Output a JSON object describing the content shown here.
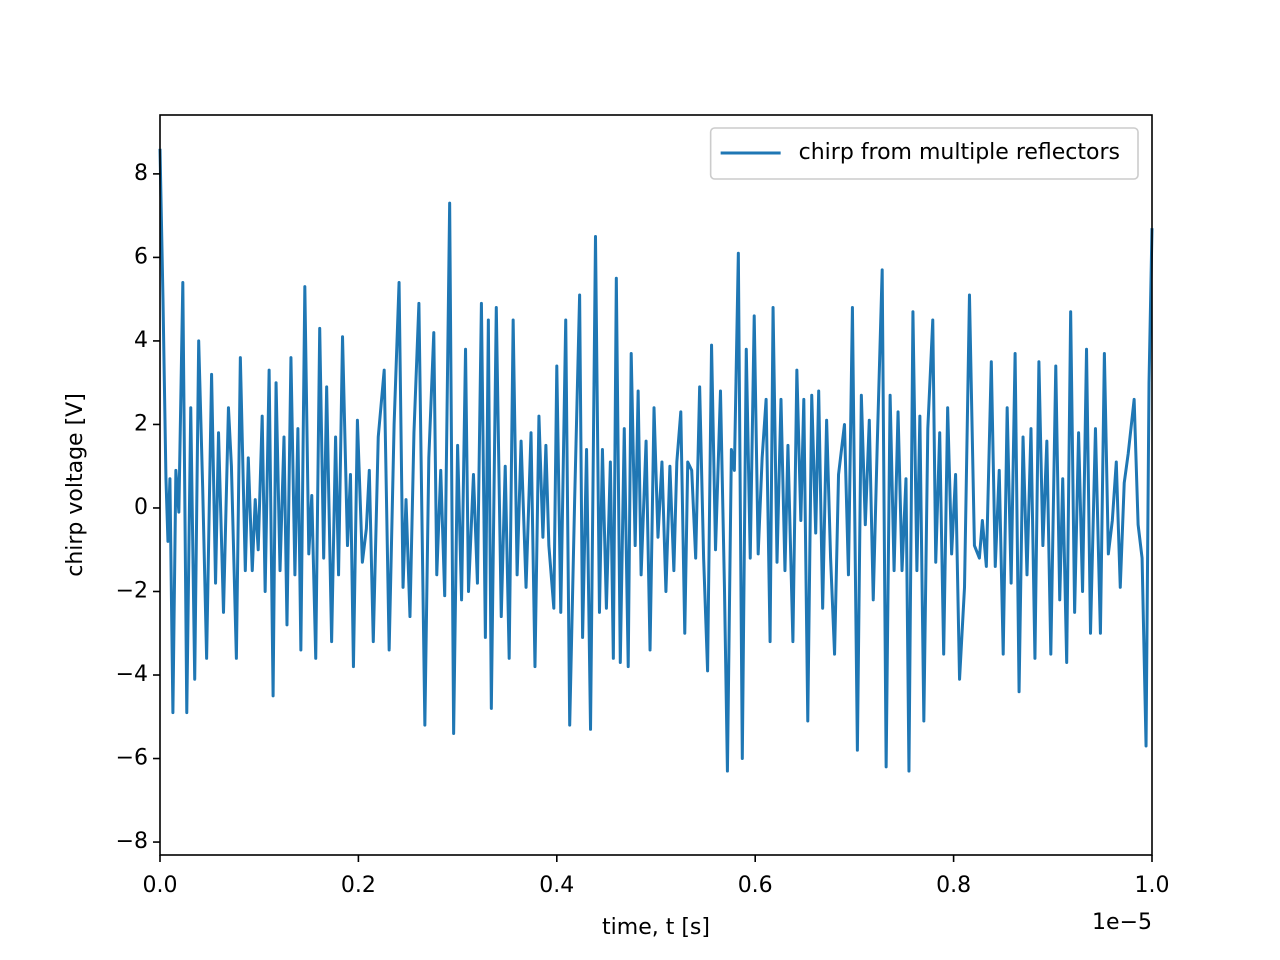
{
  "chart_data": {
    "type": "line",
    "x_label": "time, t [s]",
    "y_label": "chirp voltage [V]",
    "x_offset_label": "1e−5",
    "legend": "upper right",
    "xlim": [
      0,
      1
    ],
    "ylim": [
      -8.31,
      9.41
    ],
    "xticks": [
      {
        "value": 0,
        "label": "0.0"
      },
      0.2,
      0.4,
      0.6,
      0.8,
      {
        "value": 1,
        "label": "1.0"
      }
    ],
    "yticks": [
      {
        "value": -8,
        "label": "−8"
      },
      {
        "value": -6,
        "label": "−6"
      },
      {
        "value": -4,
        "label": "−4"
      },
      {
        "value": -2,
        "label": "−2"
      },
      0,
      2,
      4,
      6,
      8
    ],
    "x": [
      0,
      0.003,
      0.006,
      0.008,
      0.01,
      0.013,
      0.016,
      0.019,
      0.023,
      0.027,
      0.031,
      0.035,
      0.039,
      0.043,
      0.047,
      0.052,
      0.056,
      0.059,
      0.064,
      0.069,
      0.072,
      0.077,
      0.081,
      0.086,
      0.089,
      0.093,
      0.096,
      0.099,
      0.103,
      0.106,
      0.11,
      0.114,
      0.117,
      0.121,
      0.125,
      0.128,
      0.132,
      0.136,
      0.139,
      0.142,
      0.146,
      0.15,
      0.153,
      0.157,
      0.161,
      0.165,
      0.168,
      0.173,
      0.177,
      0.18,
      0.184,
      0.189,
      0.192,
      0.195,
      0.199,
      0.204,
      0.208,
      0.211,
      0.215,
      0.22,
      0.226,
      0.231,
      0.236,
      0.241,
      0.245,
      0.248,
      0.252,
      0.256,
      0.261,
      0.267,
      0.271,
      0.276,
      0.279,
      0.283,
      0.287,
      0.292,
      0.296,
      0.3,
      0.304,
      0.308,
      0.311,
      0.316,
      0.32,
      0.324,
      0.328,
      0.331,
      0.334,
      0.339,
      0.344,
      0.348,
      0.352,
      0.356,
      0.36,
      0.364,
      0.369,
      0.374,
      0.378,
      0.382,
      0.386,
      0.389,
      0.392,
      0.397,
      0.4,
      0.404,
      0.409,
      0.413,
      0.418,
      0.423,
      0.426,
      0.43,
      0.434,
      0.439,
      0.443,
      0.446,
      0.45,
      0.454,
      0.457,
      0.46,
      0.464,
      0.468,
      0.472,
      0.475,
      0.479,
      0.482,
      0.485,
      0.49,
      0.494,
      0.498,
      0.502,
      0.506,
      0.51,
      0.514,
      0.518,
      0.521,
      0.525,
      0.529,
      0.532,
      0.536,
      0.54,
      0.544,
      0.548,
      0.552,
      0.556,
      0.56,
      0.565,
      0.569,
      0.572,
      0.576,
      0.579,
      0.583,
      0.587,
      0.591,
      0.595,
      0.599,
      0.603,
      0.607,
      0.611,
      0.615,
      0.618,
      0.622,
      0.626,
      0.63,
      0.633,
      0.638,
      0.642,
      0.646,
      0.649,
      0.653,
      0.657,
      0.661,
      0.664,
      0.668,
      0.672,
      0.676,
      0.68,
      0.684,
      0.69,
      0.694,
      0.698,
      0.703,
      0.707,
      0.711,
      0.715,
      0.719,
      0.723,
      0.728,
      0.732,
      0.736,
      0.74,
      0.744,
      0.748,
      0.752,
      0.755,
      0.759,
      0.763,
      0.766,
      0.77,
      0.774,
      0.779,
      0.782,
      0.786,
      0.79,
      0.794,
      0.798,
      0.802,
      0.806,
      0.811,
      0.816,
      0.821,
      0.826,
      0.829,
      0.833,
      0.838,
      0.842,
      0.846,
      0.85,
      0.854,
      0.858,
      0.862,
      0.866,
      0.87,
      0.874,
      0.878,
      0.882,
      0.886,
      0.89,
      0.894,
      0.898,
      0.903,
      0.907,
      0.91,
      0.914,
      0.918,
      0.922,
      0.926,
      0.93,
      0.934,
      0.938,
      0.943,
      0.948,
      0.952,
      0.956,
      0.96,
      0.964,
      0.968,
      0.972,
      0.976,
      0.982,
      0.986,
      0.99,
      0.994,
      0.997,
      1
    ],
    "series": [
      {
        "name": "chirp from multiple reflectors",
        "color": "#1f77b4",
        "values": [
          8.6,
          5,
          0.7,
          -0.8,
          0.7,
          -4.9,
          0.9,
          -0.1,
          5.4,
          -4.9,
          2.4,
          -4.1,
          4,
          0.5,
          -3.6,
          3.2,
          -1.8,
          1.8,
          -2.5,
          2.4,
          1,
          -3.6,
          3.6,
          -1.5,
          1.2,
          -1.5,
          0.2,
          -1,
          2.2,
          -2,
          3.3,
          -4.5,
          3,
          -1.5,
          1.7,
          -2.8,
          3.6,
          -1.6,
          1.9,
          -3.4,
          5.3,
          -1.1,
          0.3,
          -3.6,
          4.3,
          -1.2,
          2.9,
          -3.2,
          1.7,
          -1.6,
          4.1,
          -0.9,
          0.8,
          -3.8,
          2.1,
          -1.3,
          -0.5,
          0.9,
          -3.2,
          1.7,
          3.3,
          -3.4,
          2,
          5.4,
          -1.9,
          0.2,
          -2.6,
          1.8,
          4.9,
          -5.2,
          1.2,
          4.2,
          -1.6,
          0.9,
          -2.1,
          7.3,
          -5.4,
          1.5,
          -2.2,
          3.8,
          -2,
          0.8,
          -1.8,
          4.9,
          -3.1,
          4.5,
          -4.8,
          4.8,
          -2.6,
          1,
          -3.6,
          4.5,
          -1.6,
          1.6,
          -1.9,
          1.8,
          -3.8,
          2.2,
          -0.7,
          1.5,
          -0.9,
          -2.4,
          3.4,
          -2.5,
          4.5,
          -5.2,
          0.2,
          5.1,
          -3.1,
          1.4,
          -5.3,
          6.5,
          -2.5,
          1.4,
          -2.4,
          1.1,
          -3.6,
          5.5,
          -3.7,
          1.9,
          -3.8,
          3.7,
          -0.9,
          2.8,
          -1.6,
          1.6,
          -3.4,
          2.4,
          -0.7,
          1.1,
          -2,
          1,
          -1.5,
          1.1,
          2.3,
          -3,
          1.1,
          0.9,
          -1.2,
          2.9,
          -1.2,
          -3.9,
          3.9,
          -1,
          2.8,
          -1.9,
          -6.3,
          1.4,
          0.9,
          6.1,
          -6,
          3.8,
          -1.2,
          4.6,
          -1.1,
          1.2,
          2.6,
          -3.2,
          4.8,
          -1.3,
          2.6,
          -1.5,
          1.5,
          -3.2,
          3.3,
          -0.3,
          2.6,
          -5.1,
          2.7,
          -0.6,
          2.8,
          -2.4,
          2.1,
          -1.2,
          -3.5,
          0.8,
          2,
          -1.6,
          4.8,
          -5.8,
          2.7,
          -0.4,
          2.1,
          -2.2,
          1.5,
          5.7,
          -6.2,
          2.7,
          -1.5,
          2.3,
          -1.5,
          0.7,
          -6.3,
          4.7,
          -1.5,
          2.2,
          -5.1,
          1.9,
          4.5,
          -1.3,
          1.8,
          -3.5,
          2.4,
          -1.1,
          0.8,
          -4.1,
          -1.9,
          5.1,
          -0.9,
          -1.2,
          -0.3,
          -1.4,
          3.5,
          -1.4,
          0.9,
          -3.5,
          2.4,
          -1.8,
          3.7,
          -4.4,
          1.7,
          -1.6,
          1.9,
          -3.6,
          3.5,
          -0.9,
          1.6,
          -3.5,
          3.4,
          -2.2,
          0.7,
          -3.7,
          4.7,
          -2.5,
          1.8,
          -2,
          3.8,
          -3,
          1.9,
          -3,
          3.7,
          -1.1,
          -0.3,
          1.1,
          -1.9,
          0.6,
          1.3,
          2.6,
          -0.4,
          -1.2,
          -5.7,
          3,
          6.7
        ]
      }
    ]
  }
}
